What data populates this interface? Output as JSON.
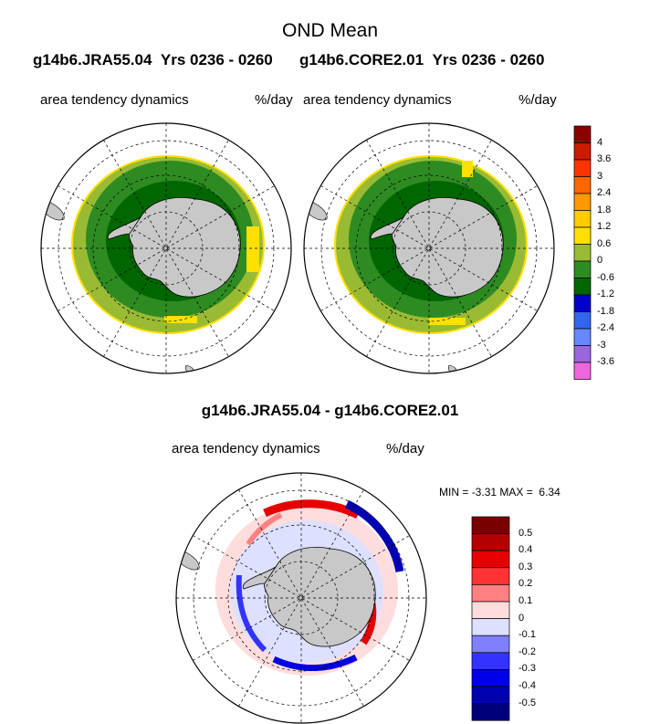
{
  "title": "OND Mean",
  "panels": [
    {
      "run": "g14b6.JRA55.04",
      "years": "Yrs 0236 - 0260",
      "variable": "area tendency dynamics",
      "units": "%/day"
    },
    {
      "run": "g14b6.CORE2.01",
      "years": "Yrs 0236 - 0260",
      "variable": "area tendency dynamics",
      "units": "%/day"
    }
  ],
  "diff": {
    "title": "g14b6.JRA55.04 - g14b6.CORE2.01",
    "variable": "area tendency dynamics",
    "units": "%/day",
    "min_label": "MIN =",
    "min_value": "-3.31",
    "max_label": "MAX =",
    "max_value": "6.34"
  },
  "colorbar_top": {
    "labels": [
      "4",
      "3.6",
      "3",
      "2.4",
      "1.8",
      "1.2",
      "0.6",
      "0",
      "-0.6",
      "-1.2",
      "-1.8",
      "-2.4",
      "-3",
      "-3.6"
    ],
    "colors": [
      "#8b0000",
      "#cc1a00",
      "#ff3300",
      "#ff6600",
      "#ff9900",
      "#ffcc00",
      "#ffe000",
      "#99bb33",
      "#2e8b22",
      "#006600",
      "#0000cc",
      "#3366ee",
      "#6688ff",
      "#9966dd",
      "#ee66dd"
    ]
  },
  "colorbar_diff": {
    "labels": [
      "0.5",
      "0.4",
      "0.3",
      "0.2",
      "0.1",
      "0",
      "-0.1",
      "-0.2",
      "-0.3",
      "-0.4",
      "-0.5"
    ],
    "colors": [
      "#7a0000",
      "#b30000",
      "#e60000",
      "#ff3333",
      "#ff8080",
      "#ffdddd",
      "#dde0ff",
      "#8080ff",
      "#3333ff",
      "#0000e6",
      "#0000b3",
      "#00007a"
    ]
  }
}
